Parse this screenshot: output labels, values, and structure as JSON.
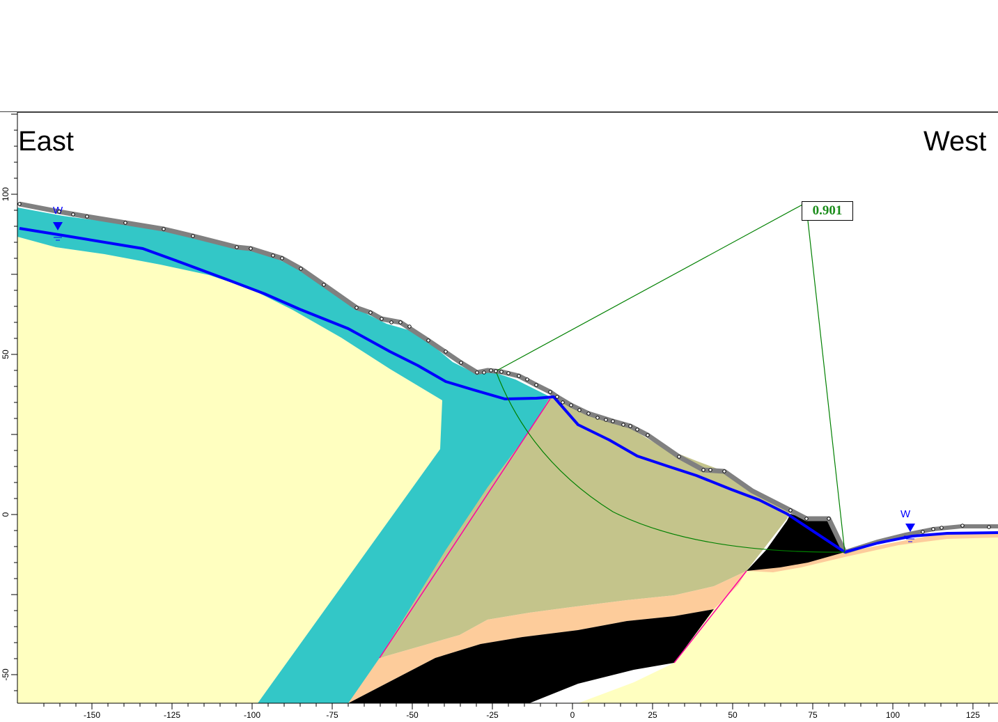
{
  "labels": {
    "east": "East",
    "west": "West"
  },
  "factor_of_safety": "0.901",
  "water_marker": "W",
  "axes": {
    "x_ticks": [
      "-150",
      "-125",
      "-100",
      "-75",
      "-50",
      "-25",
      "0",
      "25",
      "50",
      "75",
      "100",
      "125"
    ],
    "y_ticks": [
      "100",
      "50",
      "0",
      "-50"
    ]
  },
  "colors": {
    "bedrock": "#ffffc0",
    "cyan_unit": "#33c7c7",
    "olive_unit": "#c4c48b",
    "peach_unit": "#fdcc9b",
    "black_unit": "#000000",
    "surface_layer": "#808080",
    "water_table": "#0000ff",
    "slip_circle": "#008000",
    "contact": "#ff00a0"
  }
}
